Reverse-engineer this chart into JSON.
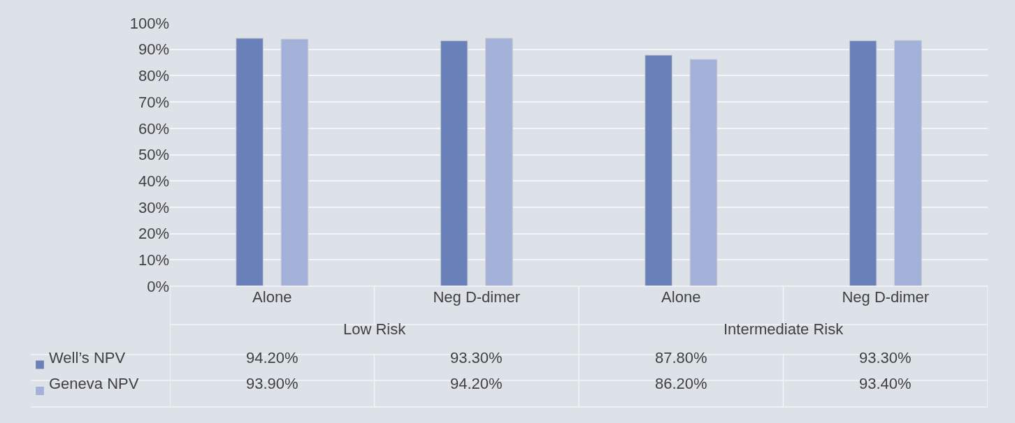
{
  "chart_data": {
    "type": "bar",
    "categories": [
      "Alone",
      "Neg D-dimer",
      "Alone",
      "Neg D-dimer"
    ],
    "series": [
      {
        "name": "Well’s NPV",
        "color": "#6a80b8",
        "values": [
          94.2,
          93.3,
          87.8,
          93.3
        ],
        "value_labels": [
          "94.20%",
          "93.30%",
          "87.80%",
          "93.30%"
        ]
      },
      {
        "name": "Geneva NPV",
        "color": "#a3b0d8",
        "values": [
          93.9,
          94.2,
          86.2,
          93.4
        ],
        "value_labels": [
          "93.90%",
          "94.20%",
          "86.20%",
          "93.40%"
        ]
      }
    ],
    "annotations": [
      "Low Risk",
      "Intermediate Risk"
    ],
    "ylim": [
      0,
      100
    ],
    "yticks": [
      {
        "value": 0,
        "label": "0%"
      },
      {
        "value": 10,
        "label": "10%"
      },
      {
        "value": 20,
        "label": "20%"
      },
      {
        "value": 30,
        "label": "30%"
      },
      {
        "value": 40,
        "label": "40%"
      },
      {
        "value": 50,
        "label": "50%"
      },
      {
        "value": 60,
        "label": "60%"
      },
      {
        "value": 70,
        "label": "70%"
      },
      {
        "value": 80,
        "label": "80%"
      },
      {
        "value": 90,
        "label": "90%"
      },
      {
        "value": 100,
        "label": "100%"
      }
    ],
    "grid": "y",
    "legend": "bottom left"
  }
}
